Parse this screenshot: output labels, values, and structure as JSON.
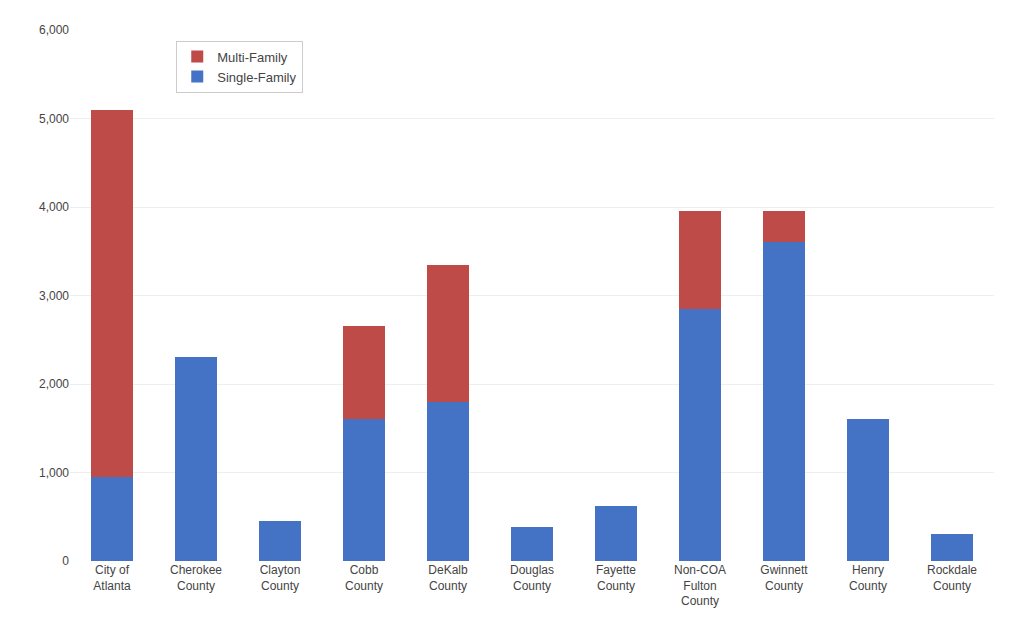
{
  "chart_data": {
    "type": "bar",
    "stacked": true,
    "categories": [
      "City of\nAtlanta",
      "Cherokee\nCounty",
      "Clayton\nCounty",
      "Cobb\nCounty",
      "DeKalb\nCounty",
      "Douglas\nCounty",
      "Fayette\nCounty",
      "Non-COA\nFulton\nCounty",
      "Gwinnett\nCounty",
      "Henry\nCounty",
      "Rockdale\nCounty"
    ],
    "series": [
      {
        "name": "Single-Family",
        "color": "#4472C4",
        "values": [
          950,
          2300,
          450,
          1600,
          1800,
          380,
          620,
          2850,
          3600,
          1600,
          300
        ]
      },
      {
        "name": "Multi-Family",
        "color": "#BE4B48",
        "values": [
          4150,
          0,
          0,
          1050,
          1550,
          0,
          0,
          1100,
          350,
          0,
          0
        ]
      }
    ],
    "ylim": [
      0,
      6000
    ],
    "yticks": [
      0,
      {
        "value": 1000,
        "label": "1,000"
      },
      {
        "value": 2000,
        "label": "2,000"
      },
      {
        "value": 3000,
        "label": "3,000"
      },
      {
        "value": 4000,
        "label": "4,000"
      },
      {
        "value": 5000,
        "label": "5,000"
      },
      {
        "value": 6000,
        "label": "6,000"
      }
    ],
    "grid": true,
    "legend": "upper left"
  }
}
